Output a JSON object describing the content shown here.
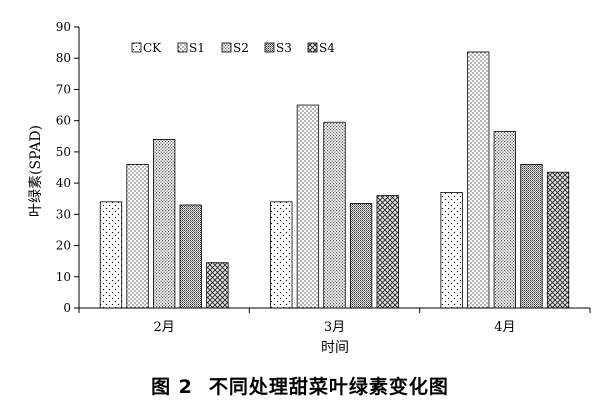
{
  "chart_data": {
    "type": "bar",
    "categories": [
      "2月",
      "3月",
      "4月"
    ],
    "series": [
      {
        "name": "CK",
        "values": [
          34,
          34,
          37
        ]
      },
      {
        "name": "S1",
        "values": [
          46,
          65,
          82
        ]
      },
      {
        "name": "S2",
        "values": [
          54,
          59.5,
          56.5
        ]
      },
      {
        "name": "S3",
        "values": [
          33,
          33.5,
          46
        ]
      },
      {
        "name": "S4",
        "values": [
          14.5,
          36,
          43.5
        ]
      }
    ],
    "ylim": [
      0,
      90
    ],
    "yticks": [
      0,
      10,
      20,
      30,
      40,
      50,
      60,
      70,
      80,
      90
    ],
    "ylabel": "叶绿素(SPAD)",
    "xlabel": "时间",
    "legend_position": "top-left",
    "grid": false
  },
  "caption": {
    "number": "图 2",
    "title": "不同处理甜菜叶绿素变化图"
  }
}
